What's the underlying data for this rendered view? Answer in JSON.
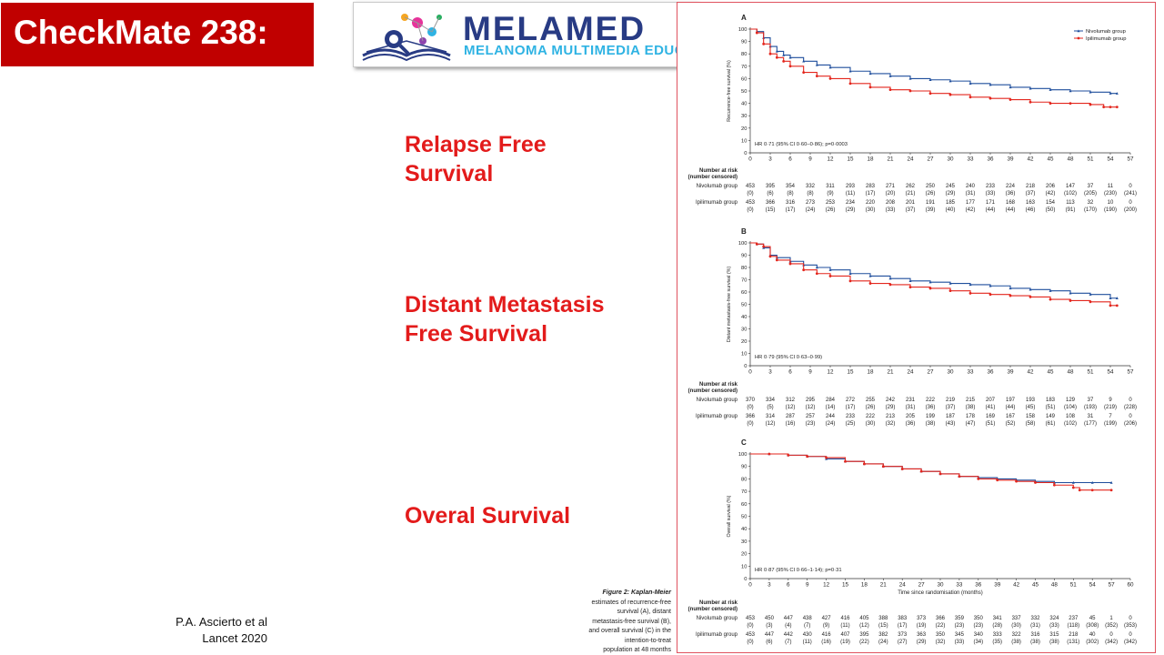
{
  "slide": {
    "title": "CheckMate 238:",
    "logo": {
      "main": "MELAMED",
      "sub": "MELANOMA MULTIMEDIA EDUCATION"
    },
    "labels": {
      "rfs": [
        "Relapse Free",
        "Survival"
      ],
      "dmfs": [
        "Distant Metastasis",
        "Free Survival"
      ],
      "os": [
        "Overal Survival"
      ]
    },
    "citation": [
      "P.A. Ascierto et al",
      "Lancet 2020"
    ],
    "caption": {
      "lead": "Figure 2: Kaplan-Meier",
      "lines": [
        "estimates of recurrence-free",
        "survival (A), distant",
        "metastasis-free survival (B),",
        "and overall survival (C) in the",
        "intention-to-treat",
        "population at 48 months"
      ]
    },
    "colors": {
      "title_bg": "#c00000",
      "label": "#e31b1b",
      "nivolumab": "#1f4e9c",
      "ipilimumab": "#e3261d"
    }
  },
  "chart_data": [
    {
      "type": "line",
      "panel": "A",
      "ylabel": "Recurrence-free survival (%)",
      "ylim": [
        0,
        100
      ],
      "xlim": [
        0,
        57
      ],
      "xticks": [
        0,
        3,
        6,
        9,
        12,
        15,
        18,
        21,
        24,
        27,
        30,
        33,
        36,
        39,
        42,
        45,
        48,
        51,
        54,
        57
      ],
      "yticks": [
        0,
        10,
        20,
        30,
        40,
        50,
        60,
        70,
        80,
        90,
        100
      ],
      "legend": "top-right",
      "annotation": "HR 0·71 (95% CI 0·60–0·86); p=0·0003",
      "series": [
        {
          "name": "Nivolumab group",
          "x": [
            0,
            1,
            2,
            3,
            4,
            5,
            6,
            8,
            10,
            12,
            15,
            18,
            21,
            24,
            27,
            30,
            33,
            36,
            39,
            42,
            45,
            48,
            51,
            54,
            55
          ],
          "y": [
            100,
            98,
            93,
            86,
            82,
            79,
            77,
            74,
            71,
            69,
            66,
            64,
            62,
            60,
            59,
            58,
            56,
            55,
            53,
            52,
            51,
            50,
            49,
            48,
            48
          ]
        },
        {
          "name": "Ipilimumab group",
          "x": [
            0,
            1,
            2,
            3,
            4,
            5,
            6,
            8,
            10,
            12,
            15,
            18,
            21,
            24,
            27,
            30,
            33,
            36,
            39,
            42,
            45,
            48,
            51,
            53,
            54,
            55
          ],
          "y": [
            100,
            97,
            88,
            80,
            77,
            74,
            70,
            65,
            62,
            60,
            56,
            53,
            51,
            50,
            48,
            47,
            45,
            44,
            43,
            41,
            40,
            40,
            39,
            37,
            37,
            37
          ]
        }
      ],
      "risk": {
        "heading": [
          "Number at risk",
          "(number censored)"
        ],
        "rows": [
          {
            "name": "Nivolumab group",
            "counts": [
              "453",
              "395",
              "354",
              "332",
              "311",
              "293",
              "283",
              "271",
              "262",
              "250",
              "245",
              "240",
              "233",
              "224",
              "218",
              "206",
              "147",
              "37",
              "11",
              "0"
            ],
            "censored": [
              "(0)",
              "(6)",
              "(8)",
              "(8)",
              "(9)",
              "(11)",
              "(17)",
              "(20)",
              "(21)",
              "(26)",
              "(29)",
              "(31)",
              "(33)",
              "(36)",
              "(37)",
              "(42)",
              "(102)",
              "(205)",
              "(230)",
              "(241)"
            ]
          },
          {
            "name": "Ipilimumab group",
            "counts": [
              "453",
              "366",
              "316",
              "273",
              "253",
              "234",
              "220",
              "208",
              "201",
              "191",
              "185",
              "177",
              "171",
              "168",
              "163",
              "154",
              "113",
              "32",
              "10",
              "0"
            ],
            "censored": [
              "(0)",
              "(15)",
              "(17)",
              "(24)",
              "(26)",
              "(29)",
              "(30)",
              "(33)",
              "(37)",
              "(39)",
              "(40)",
              "(42)",
              "(44)",
              "(44)",
              "(46)",
              "(50)",
              "(91)",
              "(170)",
              "(190)",
              "(200)"
            ]
          }
        ]
      }
    },
    {
      "type": "line",
      "panel": "B",
      "ylabel": "Distant metastasis-free survival (%)",
      "ylim": [
        0,
        100
      ],
      "xlim": [
        0,
        57
      ],
      "xticks": [
        0,
        3,
        6,
        9,
        12,
        15,
        18,
        21,
        24,
        27,
        30,
        33,
        36,
        39,
        42,
        45,
        48,
        51,
        54,
        57
      ],
      "yticks": [
        0,
        10,
        20,
        30,
        40,
        50,
        60,
        70,
        80,
        90,
        100
      ],
      "annotation": "HR 0·79 (95% CI 0·63–0·99)",
      "series": [
        {
          "name": "Nivolumab group",
          "x": [
            0,
            1,
            2,
            3,
            4,
            6,
            8,
            10,
            12,
            15,
            18,
            21,
            24,
            27,
            30,
            33,
            36,
            39,
            42,
            45,
            48,
            51,
            54,
            55
          ],
          "y": [
            100,
            99,
            96,
            90,
            88,
            85,
            82,
            80,
            78,
            75,
            73,
            71,
            69,
            68,
            67,
            66,
            65,
            63,
            62,
            61,
            59,
            58,
            55,
            55
          ]
        },
        {
          "name": "Ipilimumab group",
          "x": [
            0,
            1,
            2,
            3,
            4,
            6,
            8,
            10,
            12,
            15,
            18,
            21,
            24,
            27,
            30,
            33,
            36,
            39,
            42,
            45,
            48,
            51,
            54,
            55
          ],
          "y": [
            100,
            99,
            97,
            89,
            86,
            83,
            78,
            75,
            73,
            69,
            67,
            66,
            64,
            63,
            61,
            59,
            58,
            57,
            56,
            54,
            53,
            52,
            49,
            49
          ]
        }
      ],
      "risk": {
        "heading": [
          "Number at risk",
          "(number censored)"
        ],
        "rows": [
          {
            "name": "Nivolumab group",
            "counts": [
              "370",
              "334",
              "312",
              "295",
              "284",
              "272",
              "255",
              "242",
              "231",
              "222",
              "219",
              "215",
              "207",
              "197",
              "193",
              "183",
              "129",
              "37",
              "9",
              "0"
            ],
            "censored": [
              "(0)",
              "(5)",
              "(12)",
              "(12)",
              "(14)",
              "(17)",
              "(26)",
              "(29)",
              "(31)",
              "(36)",
              "(37)",
              "(38)",
              "(41)",
              "(44)",
              "(45)",
              "(51)",
              "(104)",
              "(193)",
              "(219)",
              "(228)"
            ]
          },
          {
            "name": "Ipilimumab group",
            "counts": [
              "366",
              "314",
              "287",
              "257",
              "244",
              "233",
              "222",
              "213",
              "205",
              "199",
              "187",
              "178",
              "169",
              "167",
              "158",
              "149",
              "108",
              "31",
              "7",
              "0"
            ],
            "censored": [
              "(0)",
              "(12)",
              "(16)",
              "(23)",
              "(24)",
              "(25)",
              "(30)",
              "(32)",
              "(36)",
              "(38)",
              "(43)",
              "(47)",
              "(51)",
              "(52)",
              "(58)",
              "(61)",
              "(102)",
              "(177)",
              "(199)",
              "(206)"
            ]
          }
        ]
      }
    },
    {
      "type": "line",
      "panel": "C",
      "ylabel": "Overall survival (%)",
      "xlabel": "Time since randomisation (months)",
      "ylim": [
        0,
        100
      ],
      "xlim": [
        0,
        60
      ],
      "xticks": [
        0,
        3,
        6,
        9,
        12,
        15,
        18,
        21,
        24,
        27,
        30,
        33,
        36,
        39,
        42,
        45,
        48,
        51,
        54,
        57,
        60
      ],
      "yticks": [
        0,
        10,
        20,
        30,
        40,
        50,
        60,
        70,
        80,
        90,
        100
      ],
      "annotation": "HR 0·87 (95% CI 0·66–1·14); p=0·31",
      "series": [
        {
          "name": "Nivolumab group",
          "x": [
            0,
            3,
            6,
            9,
            12,
            15,
            18,
            21,
            24,
            27,
            30,
            33,
            36,
            39,
            42,
            45,
            48,
            51,
            54,
            57
          ],
          "y": [
            100,
            100,
            99,
            98,
            96,
            94,
            92,
            90,
            88,
            86,
            84,
            82,
            81,
            80,
            79,
            78,
            77,
            77,
            77,
            77
          ]
        },
        {
          "name": "Ipilimumab group",
          "x": [
            0,
            3,
            6,
            9,
            12,
            15,
            18,
            21,
            24,
            27,
            30,
            33,
            36,
            39,
            42,
            45,
            48,
            51,
            52,
            54,
            57
          ],
          "y": [
            100,
            100,
            99,
            98,
            97,
            94,
            92,
            90,
            88,
            86,
            84,
            82,
            80,
            79,
            78,
            77,
            75,
            73,
            71,
            71,
            71
          ]
        }
      ],
      "risk": {
        "heading": [
          "Number at risk",
          "(number censored)"
        ],
        "rows": [
          {
            "name": "Nivolumab group",
            "counts": [
              "453",
              "450",
              "447",
              "438",
              "427",
              "416",
              "405",
              "388",
              "383",
              "373",
              "366",
              "359",
              "350",
              "341",
              "337",
              "332",
              "324",
              "237",
              "45",
              "1",
              "0"
            ],
            "censored": [
              "(0)",
              "(3)",
              "(4)",
              "(7)",
              "(9)",
              "(11)",
              "(12)",
              "(15)",
              "(17)",
              "(19)",
              "(22)",
              "(23)",
              "(23)",
              "(28)",
              "(30)",
              "(31)",
              "(33)",
              "(118)",
              "(308)",
              "(352)",
              "(353)"
            ]
          },
          {
            "name": "Ipilimumab group",
            "counts": [
              "453",
              "447",
              "442",
              "430",
              "416",
              "407",
              "395",
              "382",
              "373",
              "363",
              "350",
              "345",
              "340",
              "333",
              "322",
              "316",
              "315",
              "218",
              "40",
              "0",
              "0"
            ],
            "censored": [
              "(0)",
              "(6)",
              "(7)",
              "(11)",
              "(16)",
              "(19)",
              "(22)",
              "(24)",
              "(27)",
              "(29)",
              "(32)",
              "(33)",
              "(34)",
              "(35)",
              "(38)",
              "(38)",
              "(38)",
              "(131)",
              "(302)",
              "(342)",
              "(342)"
            ]
          }
        ]
      }
    }
  ]
}
